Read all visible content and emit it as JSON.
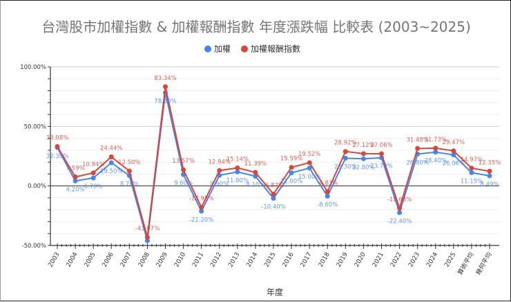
{
  "chart_data": {
    "type": "line",
    "title": "台灣股市加權指數 & 加權報酬指數 年度漲跌幅 比較表 (2003~2025)",
    "xlabel": "年度",
    "ylabel": "",
    "ylim": [
      -50,
      100
    ],
    "yticks": [
      "100.00%",
      "50.00%",
      "0.00%",
      "-50.00%"
    ],
    "yticks_values": [
      100,
      50,
      0,
      -50
    ],
    "grid": true,
    "legend_position": "top",
    "categories": [
      "2003",
      "2004",
      "2005",
      "2006",
      "2007",
      "2008",
      "2009",
      "2010",
      "2011",
      "2012",
      "2013",
      "2014",
      "2015",
      "2016",
      "2017",
      "2018",
      "2019",
      "2020",
      "2021",
      "2022",
      "2023",
      "2024",
      "2025",
      "算術平均",
      "幾何平均"
    ],
    "series": [
      {
        "name": "加權",
        "color": "#4285f4",
        "values": [
          32.3,
          4.2,
          6.7,
          19.5,
          8.7,
          -46.0,
          78.3,
          9.6,
          -21.2,
          8.9,
          11.8,
          8.1,
          -10.4,
          11.0,
          15.0,
          -8.6,
          23.3,
          22.8,
          23.7,
          -22.4,
          26.8,
          28.4,
          26.06,
          11.15,
          8.49
        ],
        "labels": [
          "32.30%",
          "4.20%",
          "6.70%",
          "19.50%",
          "8.70%",
          "",
          "78.30%",
          "9.60%",
          "-21.20%",
          "8.90%",
          "11.80%",
          "8.10%",
          "-10.40%",
          "11.00%",
          "15.00%",
          "-8.60%",
          "23.30%",
          "22.80%",
          "23.70%",
          "-22.40%",
          "26.80%",
          "28.40%",
          "26.06%",
          "11.15%",
          "8.49%"
        ]
      },
      {
        "name": "加權報酬指數",
        "color": "#db4437",
        "values": [
          33.08,
          7.59,
          10.94,
          24.44,
          12.5,
          -43.07,
          83.34,
          13.57,
          -17.98,
          12.94,
          15.14,
          11.39,
          -6.87,
          15.59,
          19.52,
          -4.83,
          28.92,
          27.12,
          27.06,
          -18.68,
          31.48,
          31.73,
          29.47,
          14.97,
          12.35
        ],
        "labels": [
          "33.08%",
          "7.59%",
          "10.94%",
          "24.44%",
          "12.50%",
          "-43.07%",
          "83.34%",
          "13.57%",
          "-17.98%",
          "12.94%",
          "15.14%",
          "11.39%",
          "-6.87%",
          "15.59%",
          "19.52%",
          "-4.83%",
          "28.92%",
          "27.12%",
          "27.06%",
          "-18.68%",
          "31.48%",
          "31.73%",
          "29.47%",
          "14.97%",
          "12.35%"
        ]
      }
    ]
  }
}
